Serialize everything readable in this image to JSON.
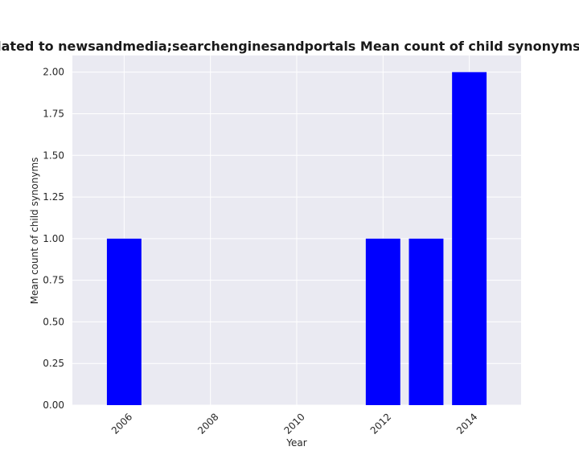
{
  "chart_data": {
    "type": "bar",
    "title": "are related to newsandmedia;searchenginesandportals Mean count of child synonyms in priva",
    "xlabel": "Year",
    "ylabel": "Mean count of child synonyms",
    "x": [
      2006,
      2012,
      2013,
      2014
    ],
    "values": [
      1.0,
      1.0,
      1.0,
      2.0
    ],
    "xlim": [
      2004.8,
      2015.2
    ],
    "ylim": [
      0,
      2.1
    ],
    "x_ticks": [
      "2006",
      "2008",
      "2010",
      "2012",
      "2014"
    ],
    "y_ticks": [
      "0.00",
      "0.25",
      "0.50",
      "0.75",
      "1.00",
      "1.25",
      "1.50",
      "1.75",
      "2.00"
    ],
    "grid": true,
    "bar_color": "#0000ff",
    "background_color": "#eaeaf2",
    "grid_color": "#ffffff"
  }
}
